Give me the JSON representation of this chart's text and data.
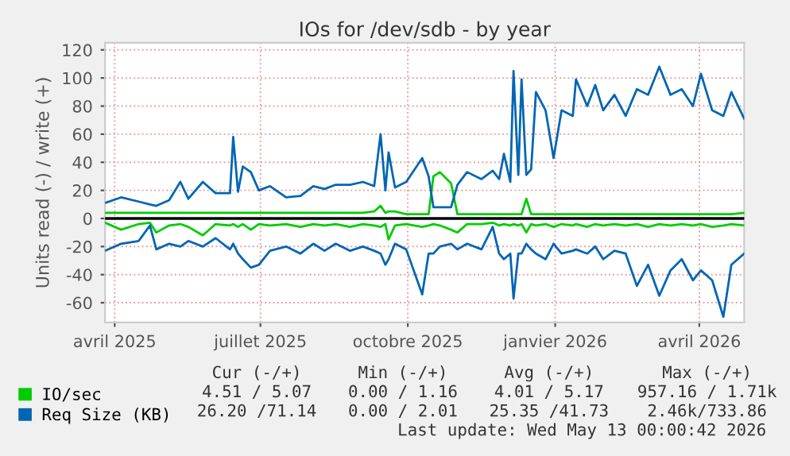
{
  "chart_data": {
    "type": "line",
    "title": "IOs for /dev/sdb - by year",
    "ylabel": "Units read (-) / write (+)",
    "x": [
      "2025-04-10",
      "2025-04-20",
      "2025-05-01",
      "2025-05-08",
      "2025-05-12",
      "2025-05-20",
      "2025-05-27",
      "2025-06-01",
      "2025-06-10",
      "2025-06-18",
      "2025-06-27",
      "2025-06-29",
      "2025-07-02",
      "2025-07-05",
      "2025-07-10",
      "2025-07-15",
      "2025-07-22",
      "2025-08-01",
      "2025-08-10",
      "2025-08-18",
      "2025-08-25",
      "2025-09-01",
      "2025-09-10",
      "2025-09-18",
      "2025-09-25",
      "2025-09-29",
      "2025-10-02",
      "2025-10-04",
      "2025-10-08",
      "2025-10-15",
      "2025-10-25",
      "2025-10-29",
      "2025-11-01",
      "2025-11-05",
      "2025-11-12",
      "2025-11-16",
      "2025-11-22",
      "2025-12-01",
      "2025-12-08",
      "2025-12-12",
      "2025-12-15",
      "2025-12-19",
      "2025-12-21",
      "2025-12-24",
      "2025-12-26",
      "2025-12-29",
      "2026-01-01",
      "2026-01-04",
      "2026-01-10",
      "2026-01-15",
      "2026-01-20",
      "2026-01-27",
      "2026-01-29",
      "2026-02-05",
      "2026-02-10",
      "2026-02-15",
      "2026-02-22",
      "2026-03-01",
      "2026-03-08",
      "2026-03-15",
      "2026-03-22",
      "2026-03-29",
      "2026-04-05",
      "2026-04-12",
      "2026-04-17",
      "2026-04-24",
      "2026-05-01",
      "2026-05-06",
      "2026-05-14"
    ],
    "series": [
      {
        "name": "IO/sec",
        "color": "#00cc00",
        "values": [
          4,
          4,
          4,
          4,
          4,
          4,
          4,
          4,
          4,
          4,
          4,
          4,
          4,
          4,
          4,
          4,
          4,
          4,
          4,
          4,
          4,
          4,
          4,
          4,
          5,
          9,
          4,
          5,
          5,
          3,
          3,
          3,
          30,
          33,
          25,
          3,
          3,
          3,
          3,
          3,
          3,
          3,
          3,
          3,
          3,
          14,
          3,
          3,
          3,
          3,
          3,
          3,
          3,
          3,
          3,
          3,
          3,
          3,
          3,
          3,
          3,
          3,
          3,
          3,
          3,
          3,
          3,
          3,
          4
        ]
      },
      {
        "color": "#00cc00",
        "values": [
          -3,
          -8,
          -4,
          -3,
          -10,
          -5,
          -4,
          -6,
          -12,
          -4,
          -5,
          -4,
          -6,
          -4,
          -8,
          -4,
          -5,
          -4,
          -6,
          -4,
          -5,
          -4,
          -6,
          -4,
          -5,
          -6,
          -4,
          -15,
          -5,
          -4,
          -6,
          -5,
          -4,
          -5,
          -8,
          -10,
          -4,
          -4,
          -3,
          -5,
          -4,
          -5,
          -4,
          -5,
          -4,
          -10,
          -4,
          -5,
          -4,
          -6,
          -4,
          -5,
          -4,
          -6,
          -4,
          -5,
          -4,
          -5,
          -4,
          -6,
          -4,
          -5,
          -4,
          -5,
          -4,
          -6,
          -5,
          -4,
          -5
        ]
      },
      {
        "name": "Req Size (KB)",
        "color": "#0066b3",
        "values": [
          11,
          15,
          12,
          10,
          9,
          13,
          26,
          14,
          26,
          18,
          18,
          58,
          19,
          37,
          33,
          20,
          23,
          15,
          16,
          23,
          21,
          24,
          24,
          26,
          23,
          60,
          20,
          47,
          22,
          26,
          43,
          30,
          8,
          8,
          8,
          24,
          33,
          28,
          34,
          28,
          46,
          26,
          105,
          31,
          99,
          31,
          35,
          90,
          77,
          43,
          77,
          73,
          99,
          80,
          95,
          77,
          88,
          73,
          92,
          88,
          108,
          88,
          92,
          80,
          103,
          77,
          73,
          90,
          71
        ]
      },
      {
        "color": "#0066b3",
        "values": [
          -23,
          -18,
          -16,
          -5,
          -22,
          -18,
          -20,
          -16,
          -20,
          -14,
          -22,
          -18,
          -25,
          -29,
          -35,
          -33,
          -23,
          -20,
          -25,
          -18,
          -23,
          -18,
          -23,
          -20,
          -23,
          -25,
          -33,
          -29,
          -18,
          -22,
          -54,
          -25,
          -25,
          -20,
          -18,
          -22,
          -18,
          -22,
          -6,
          -25,
          -29,
          -25,
          -57,
          -25,
          -25,
          -18,
          -22,
          -25,
          -29,
          -18,
          -25,
          -23,
          -22,
          -25,
          -20,
          -29,
          -23,
          -25,
          -48,
          -33,
          -55,
          -37,
          -29,
          -44,
          -37,
          -44,
          -70,
          -33,
          -25
        ]
      }
    ],
    "xlim": [
      "2025-04-10",
      "2026-05-14"
    ],
    "xticks": [
      {
        "value": "2025-04-16",
        "label": "avril 2025"
      },
      {
        "value": "2025-07-16",
        "label": "juillet 2025"
      },
      {
        "value": "2025-10-16",
        "label": "octobre 2025"
      },
      {
        "value": "2026-01-16",
        "label": "janvier 2026"
      },
      {
        "value": "2026-04-16",
        "label": "avril 2026"
      }
    ],
    "ylim": [
      -74,
      125
    ],
    "yticks": [
      -60,
      -40,
      -20,
      0,
      20,
      40,
      60,
      80,
      100,
      120
    ],
    "ref_lines": [
      {
        "axis": "y",
        "value": 0,
        "color": "#000000"
      }
    ],
    "grid": true,
    "legend": "bottom left",
    "annotations": [
      "Cur (-/+)",
      "Min (-/+)",
      "Avg (-/+)",
      "Max (-/+)",
      "4.51 / 5.07",
      "0.00 / 1.16",
      "4.01 / 5.17",
      "957.16 / 1.71k",
      "26.20 /71.14",
      "0.00 / 2.01",
      "25.35 /41.73",
      "2.46k/733.86",
      "Last update: Wed May 13 00:00:42 2026"
    ]
  }
}
